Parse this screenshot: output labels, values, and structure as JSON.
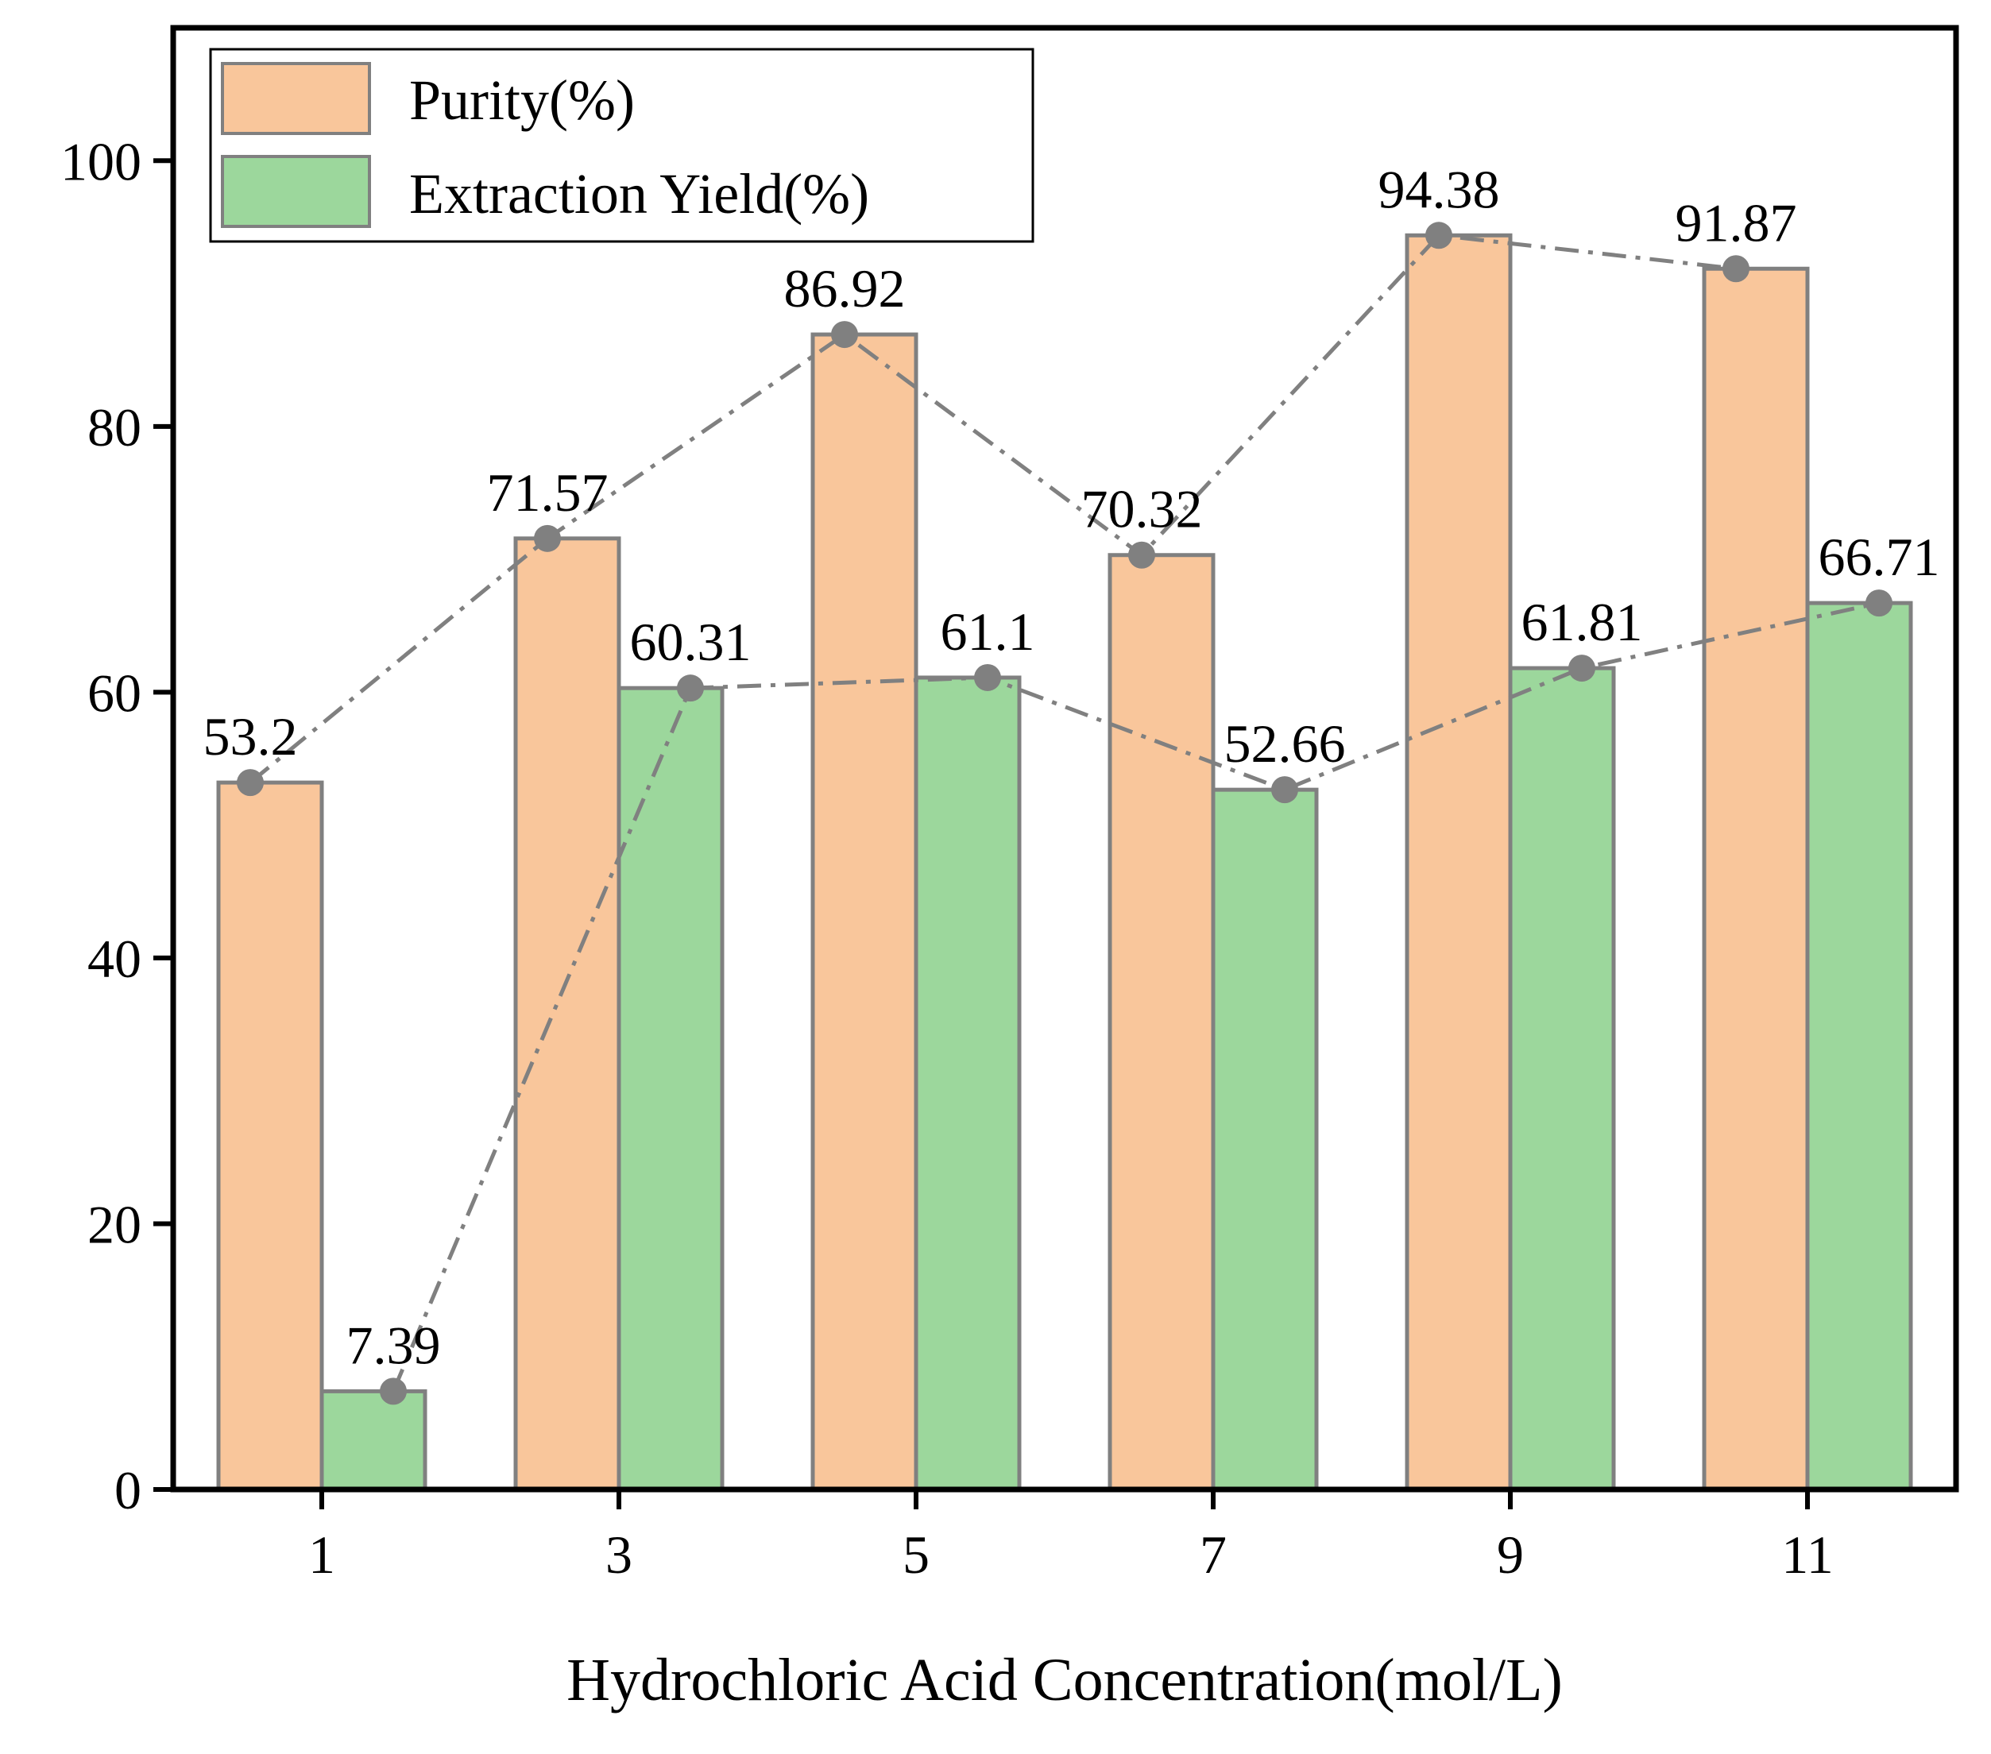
{
  "chart_data": {
    "type": "bar",
    "title": "",
    "xlabel": "Hydrochloric Acid Concentration(mol/L)",
    "ylabel": "",
    "categories": [
      "1",
      "3",
      "5",
      "7",
      "9",
      "11"
    ],
    "ylim": [
      0,
      110
    ],
    "yticks": [
      0,
      20,
      40,
      60,
      80,
      100
    ],
    "ytick_labels": [
      "0",
      "20",
      "40",
      "60",
      "80",
      "100"
    ],
    "grid": false,
    "legend_position": "top-left",
    "series": [
      {
        "name": "Purity(%)",
        "values": [
          53.2,
          71.57,
          86.92,
          70.32,
          94.38,
          91.87
        ],
        "labels": [
          "53.2",
          "71.57",
          "86.92",
          "70.32",
          "94.38",
          "91.87"
        ],
        "color": "#f9c69b"
      },
      {
        "name": "Extraction Yield(%)",
        "values": [
          7.39,
          60.31,
          61.1,
          52.66,
          61.81,
          66.71
        ],
        "labels": [
          "7.39",
          "60.31",
          "61.1",
          "52.66",
          "61.81",
          "66.71"
        ],
        "color": "#9cd79c"
      }
    ],
    "trend_line_color": "#808080",
    "marker_color": "#808080"
  }
}
